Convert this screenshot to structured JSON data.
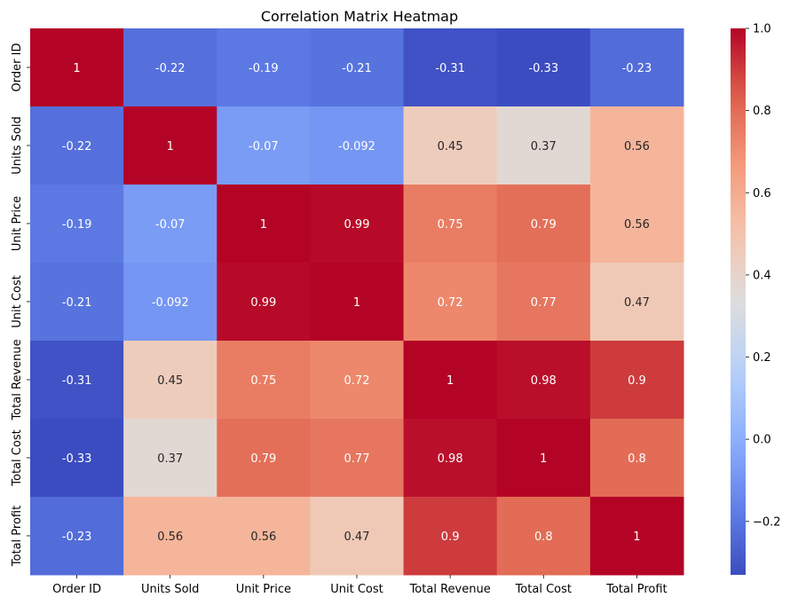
{
  "chart_data": {
    "type": "heatmap",
    "title": "Correlation Matrix Heatmap",
    "xlabel": "",
    "ylabel": "",
    "x_categories": [
      "Order ID",
      "Units Sold",
      "Unit Price",
      "Unit Cost",
      "Total Revenue",
      "Total Cost",
      "Total Profit"
    ],
    "y_categories": [
      "Order ID",
      "Units Sold",
      "Unit Price",
      "Unit Cost",
      "Total Revenue",
      "Total Cost",
      "Total Profit"
    ],
    "values": [
      [
        1,
        -0.22,
        -0.19,
        -0.21,
        -0.31,
        -0.33,
        -0.23
      ],
      [
        -0.22,
        1,
        -0.07,
        -0.092,
        0.45,
        0.37,
        0.56
      ],
      [
        -0.19,
        -0.07,
        1,
        0.99,
        0.75,
        0.79,
        0.56
      ],
      [
        -0.21,
        -0.092,
        0.99,
        1,
        0.72,
        0.77,
        0.47
      ],
      [
        -0.31,
        0.45,
        0.75,
        0.72,
        1,
        0.98,
        0.9
      ],
      [
        -0.33,
        0.37,
        0.79,
        0.77,
        0.98,
        1,
        0.8
      ],
      [
        -0.23,
        0.56,
        0.56,
        0.47,
        0.9,
        0.8,
        1
      ]
    ],
    "colormap": "coolwarm",
    "vmin": -0.33,
    "vmax": 1,
    "colorbar_ticks": [
      -0.2,
      0.0,
      0.2,
      0.4,
      0.6,
      0.8,
      1.0
    ],
    "colorbar_tick_labels": [
      "−0.2",
      "0.0",
      "0.2",
      "0.4",
      "0.6",
      "0.8",
      "1.0"
    ],
    "annotated": true,
    "grid": false,
    "colorbar_position": "right"
  }
}
